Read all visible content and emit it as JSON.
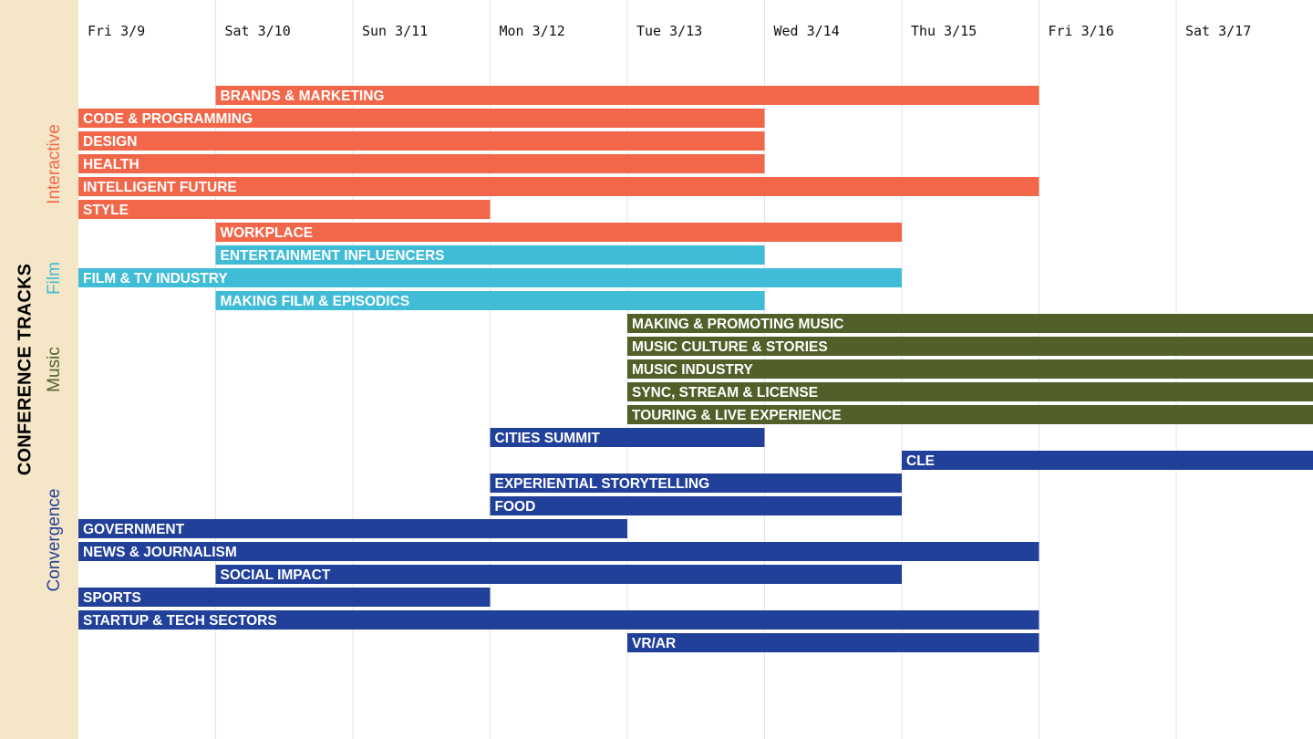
{
  "sidebar": {
    "title": "CONFERENCE TRACKS",
    "groups": [
      {
        "label": "Interactive",
        "color": "#f26749"
      },
      {
        "label": "Film",
        "color": "#41bcd6"
      },
      {
        "label": "Music",
        "color": "#516029"
      },
      {
        "label": "Convergence",
        "color": "#21409a"
      }
    ]
  },
  "chart_data": {
    "type": "gantt",
    "days": [
      "Fri 3/9",
      "Sat 3/10",
      "Sun 3/11",
      "Mon 3/12",
      "Tue 3/13",
      "Wed 3/14",
      "Thu 3/15",
      "Fri 3/16",
      "Sat 3/17"
    ],
    "tracks": [
      {
        "name": "BRANDS & MARKETING",
        "group": "Interactive",
        "start": "Sat 3/10",
        "end": "Thu 3/15"
      },
      {
        "name": "CODE & PROGRAMMING",
        "group": "Interactive",
        "start": "Fri 3/9",
        "end": "Tue 3/13"
      },
      {
        "name": "DESIGN",
        "group": "Interactive",
        "start": "Fri 3/9",
        "end": "Tue 3/13"
      },
      {
        "name": "HEALTH",
        "group": "Interactive",
        "start": "Fri 3/9",
        "end": "Tue 3/13"
      },
      {
        "name": "INTELLIGENT FUTURE",
        "group": "Interactive",
        "start": "Fri 3/9",
        "end": "Thu 3/15"
      },
      {
        "name": "STYLE",
        "group": "Interactive",
        "start": "Fri 3/9",
        "end": "Sun 3/11"
      },
      {
        "name": "WORKPLACE",
        "group": "Interactive",
        "start": "Sat 3/10",
        "end": "Wed 3/14"
      },
      {
        "name": "ENTERTAINMENT INFLUENCERS",
        "group": "Film",
        "start": "Sat 3/10",
        "end": "Tue 3/13"
      },
      {
        "name": "FILM & TV INDUSTRY",
        "group": "Film",
        "start": "Fri 3/9",
        "end": "Wed 3/14"
      },
      {
        "name": "MAKING FILM & EPISODICS",
        "group": "Film",
        "start": "Sat 3/10",
        "end": "Tue 3/13"
      },
      {
        "name": "MAKING & PROMOTING MUSIC",
        "group": "Music",
        "start": "Tue 3/13",
        "end": "Sat 3/17"
      },
      {
        "name": "MUSIC CULTURE & STORIES",
        "group": "Music",
        "start": "Tue 3/13",
        "end": "Sat 3/17"
      },
      {
        "name": "MUSIC INDUSTRY",
        "group": "Music",
        "start": "Tue 3/13",
        "end": "Sat 3/17"
      },
      {
        "name": "SYNC, STREAM & LICENSE",
        "group": "Music",
        "start": "Tue 3/13",
        "end": "Sat 3/17"
      },
      {
        "name": "TOURING & LIVE EXPERIENCE",
        "group": "Music",
        "start": "Tue 3/13",
        "end": "Sat 3/17"
      },
      {
        "name": "CITIES SUMMIT",
        "group": "Convergence",
        "start": "Mon 3/12",
        "end": "Tue 3/13"
      },
      {
        "name": "CLE",
        "group": "Convergence",
        "start": "Thu 3/15",
        "end": "Sat 3/17"
      },
      {
        "name": "EXPERIENTIAL STORYTELLING",
        "group": "Convergence",
        "start": "Mon 3/12",
        "end": "Wed 3/14"
      },
      {
        "name": "FOOD",
        "group": "Convergence",
        "start": "Mon 3/12",
        "end": "Wed 3/14"
      },
      {
        "name": "GOVERNMENT",
        "group": "Convergence",
        "start": "Fri 3/9",
        "end": "Mon 3/12"
      },
      {
        "name": "NEWS & JOURNALISM",
        "group": "Convergence",
        "start": "Fri 3/9",
        "end": "Thu 3/15"
      },
      {
        "name": "SOCIAL IMPACT",
        "group": "Convergence",
        "start": "Sat 3/10",
        "end": "Wed 3/14"
      },
      {
        "name": "SPORTS",
        "group": "Convergence",
        "start": "Fri 3/9",
        "end": "Sun 3/11"
      },
      {
        "name": "STARTUP & TECH SECTORS",
        "group": "Convergence",
        "start": "Fri 3/9",
        "end": "Thu 3/15"
      },
      {
        "name": "VR/AR",
        "group": "Convergence",
        "start": "Tue 3/13",
        "end": "Thu 3/15"
      }
    ]
  }
}
